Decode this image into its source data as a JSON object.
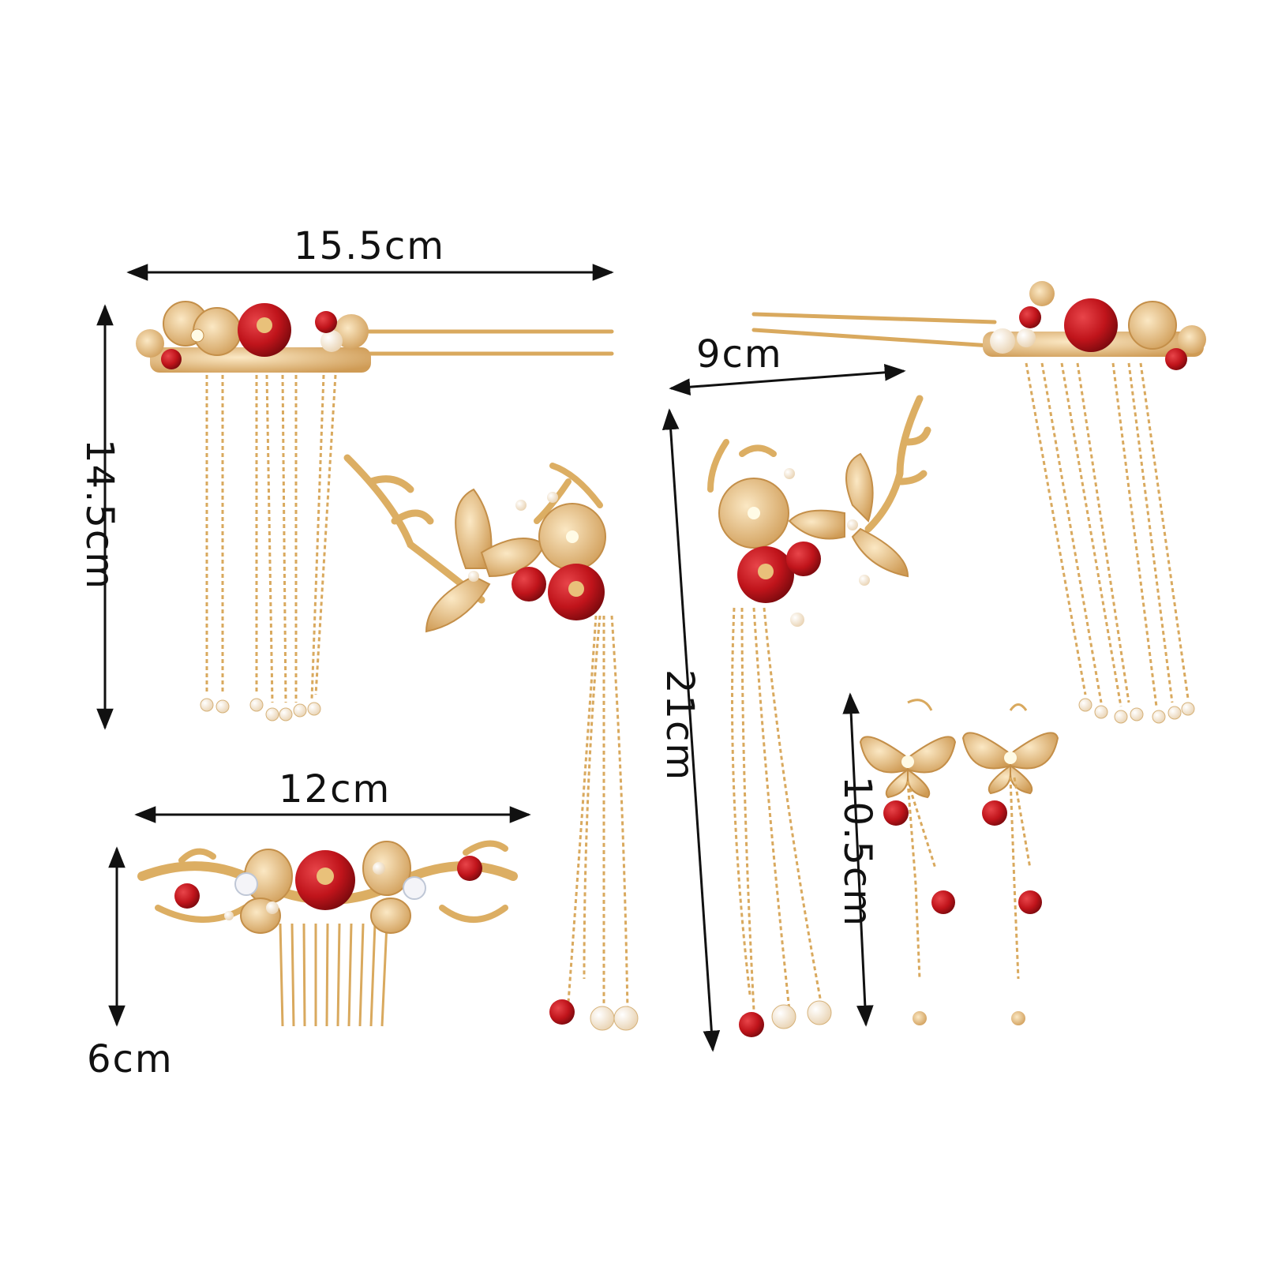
{
  "colors": {
    "gold": "#e2b46a",
    "gold_light": "#f3d7a2",
    "gold_dark": "#b8843c",
    "red_bead": "#c0141b",
    "red_dark": "#7d0a0e",
    "pearl": "#f6ead8",
    "arrow": "#111111"
  },
  "items": [
    {
      "name": "tassel-hairpin-left",
      "dimension_labels": [
        "15.5cm",
        "14.5cm"
      ]
    },
    {
      "name": "butterfly-branch-hairpin-left",
      "dimension_labels": []
    },
    {
      "name": "butterfly-branch-hairpin-right",
      "dimension_labels": [
        "9cm",
        "21cm"
      ]
    },
    {
      "name": "tassel-hairpin-right",
      "dimension_labels": []
    },
    {
      "name": "hair-comb",
      "dimension_labels": [
        "12cm",
        "6cm"
      ]
    },
    {
      "name": "butterfly-earrings",
      "dimension_labels": [
        "10.5cm"
      ]
    }
  ],
  "labels": {
    "hairpin_width": "15.5cm",
    "hairpin_height": "14.5cm",
    "branch_width": "9cm",
    "branch_height": "21cm",
    "comb_width": "12cm",
    "comb_height": "6cm",
    "earring_height": "10.5cm"
  }
}
